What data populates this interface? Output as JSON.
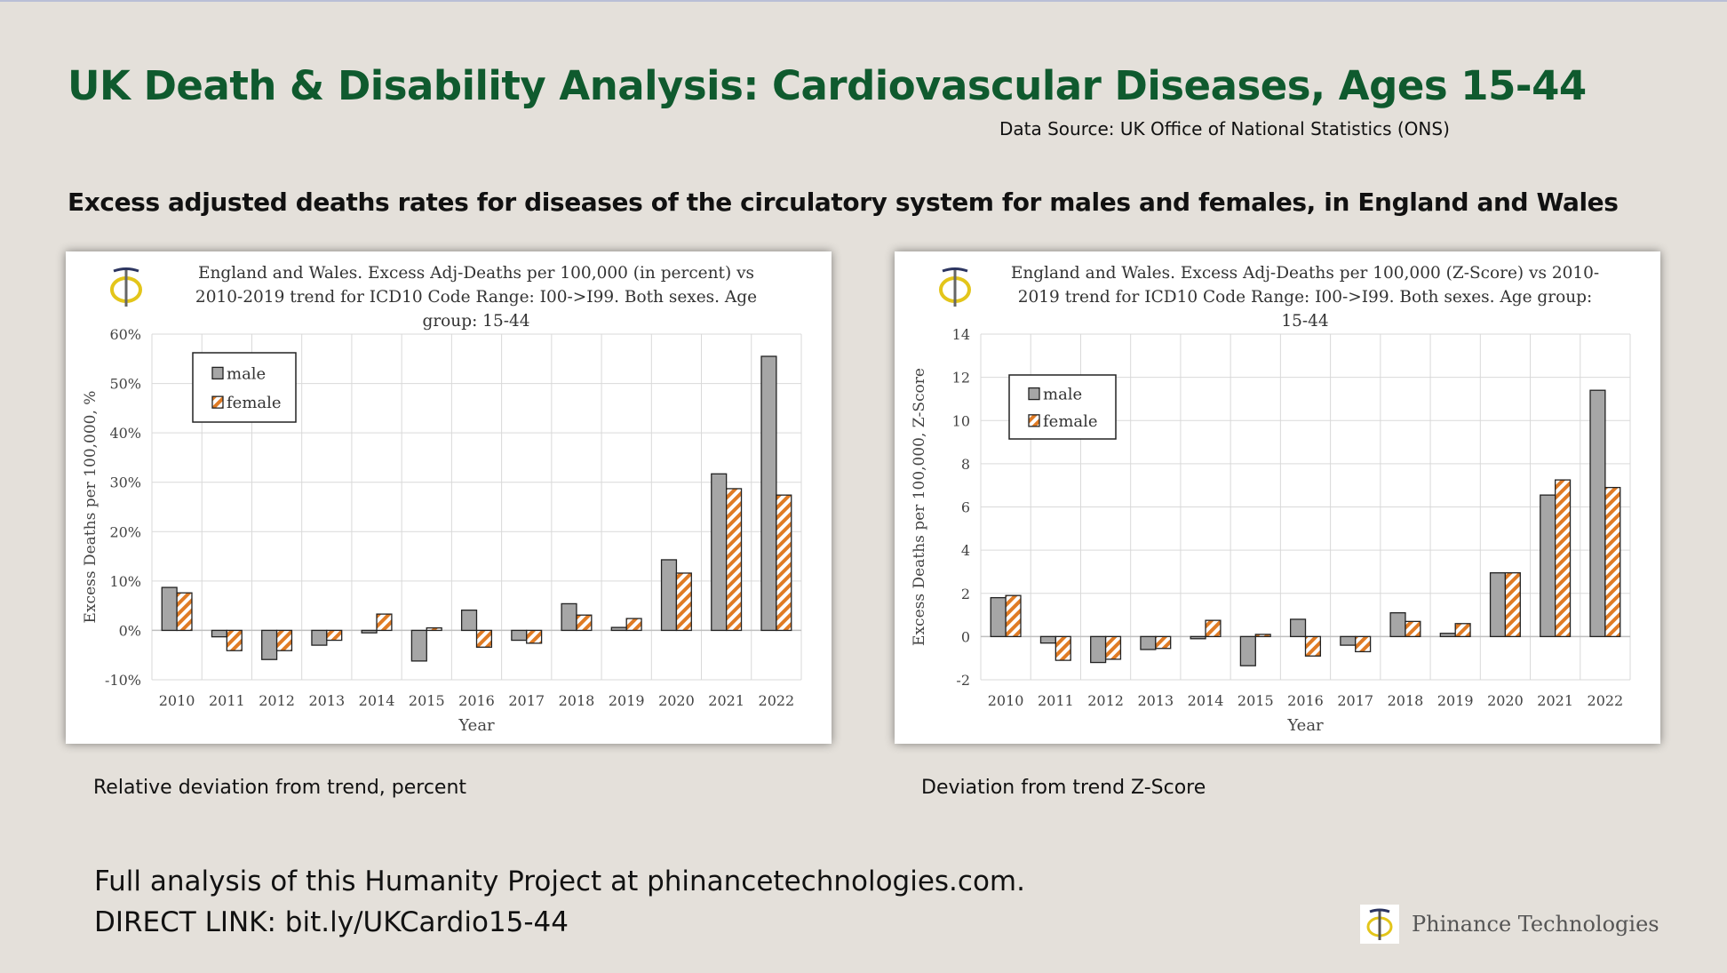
{
  "header": {
    "title": "UK Death & Disability Analysis: Cardiovascular Diseases, Ages 15-44",
    "source": "Data Source: UK Office of National Statistics (ONS)",
    "subtitle": "Excess adjusted deaths rates for diseases of the circulatory system for males and females, in England and Wales"
  },
  "captions": {
    "left": "Relative deviation from trend, percent",
    "right": "Deviation from trend Z-Score"
  },
  "footer": {
    "line1": "Full analysis of this Humanity Project at phinancetechnologies.com.",
    "line2": "DIRECT LINK: bit.ly/UKCardio15-44",
    "brand": "Phinance Technologies"
  },
  "colors": {
    "male": "#a6a6a6",
    "female": "#e07b24",
    "title_green": "#0f5a2e",
    "logo_gold": "#e3c51a",
    "logo_navy": "#2c3560"
  },
  "chart_data": [
    {
      "type": "bar",
      "title": [
        "England and Wales. Excess Adj-Deaths per 100,000 (in percent) vs",
        "2010-2019 trend for ICD10 Code Range: I00->I99. Both sexes. Age",
        "group: 15-44"
      ],
      "xlabel": "Year",
      "ylabel": "Excess Deaths per 100,000, %",
      "categories": [
        "2010",
        "2011",
        "2012",
        "2013",
        "2014",
        "2015",
        "2016",
        "2017",
        "2018",
        "2019",
        "2020",
        "2021",
        "2022"
      ],
      "ylim": [
        -10,
        60
      ],
      "yticks": [
        -10,
        0,
        10,
        20,
        30,
        40,
        50,
        60
      ],
      "ytick_labels": [
        "-10%",
        "0%",
        "10%",
        "20%",
        "30%",
        "40%",
        "50%",
        "60%"
      ],
      "grid": true,
      "legend": "top-left",
      "series": [
        {
          "name": "male",
          "values": [
            8.7,
            -1.3,
            -5.9,
            -3.0,
            -0.5,
            -6.2,
            4.1,
            -2.0,
            5.4,
            0.6,
            14.3,
            31.7,
            55.5
          ]
        },
        {
          "name": "female",
          "values": [
            7.6,
            -4.1,
            -4.1,
            -2.0,
            3.3,
            0.5,
            -3.4,
            -2.6,
            3.1,
            2.4,
            11.6,
            28.7,
            27.4
          ]
        }
      ]
    },
    {
      "type": "bar",
      "title": [
        "England and Wales. Excess Adj-Deaths per 100,000 (Z-Score) vs 2010-",
        "2019 trend for ICD10 Code Range: I00->I99. Both sexes. Age group:",
        "15-44"
      ],
      "xlabel": "Year",
      "ylabel": "Excess Deaths per 100,000, Z-Score",
      "categories": [
        "2010",
        "2011",
        "2012",
        "2013",
        "2014",
        "2015",
        "2016",
        "2017",
        "2018",
        "2019",
        "2020",
        "2021",
        "2022"
      ],
      "ylim": [
        -2,
        14
      ],
      "yticks": [
        -2,
        0,
        2,
        4,
        6,
        8,
        10,
        12,
        14
      ],
      "ytick_labels": [
        "-2",
        "0",
        "2",
        "4",
        "6",
        "8",
        "10",
        "12",
        "14"
      ],
      "grid": true,
      "legend": "top-left",
      "series": [
        {
          "name": "male",
          "values": [
            1.8,
            -0.3,
            -1.2,
            -0.6,
            -0.1,
            -1.35,
            0.8,
            -0.4,
            1.1,
            0.15,
            2.95,
            6.55,
            11.4
          ]
        },
        {
          "name": "female",
          "values": [
            1.9,
            -1.1,
            -1.05,
            -0.55,
            0.75,
            0.1,
            -0.9,
            -0.7,
            0.7,
            0.6,
            2.95,
            7.25,
            6.9
          ]
        }
      ]
    }
  ]
}
